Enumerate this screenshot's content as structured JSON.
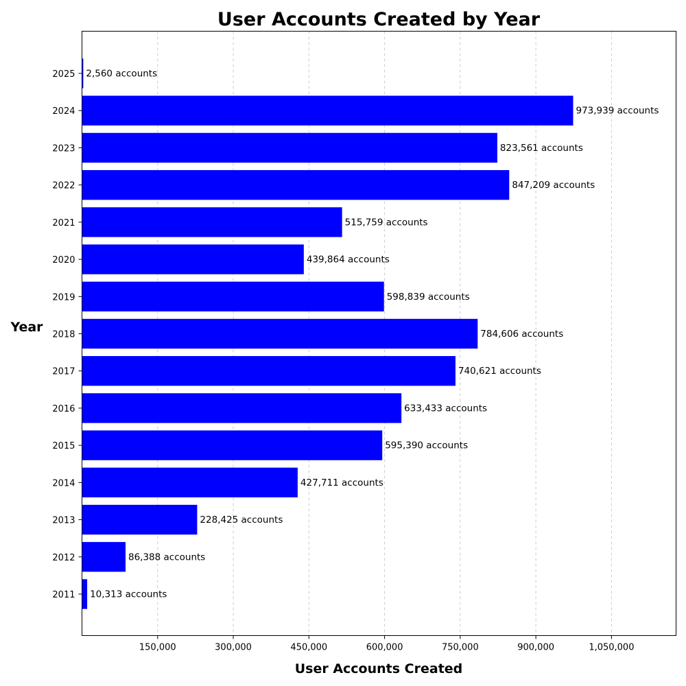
{
  "chart_data": {
    "type": "bar",
    "orientation": "horizontal",
    "title": "User Accounts Created by Year",
    "xlabel": "User Accounts Created",
    "ylabel": "Year",
    "categories": [
      "2011",
      "2012",
      "2013",
      "2014",
      "2015",
      "2016",
      "2017",
      "2018",
      "2019",
      "2020",
      "2021",
      "2022",
      "2023",
      "2024",
      "2025"
    ],
    "values": [
      10313,
      86388,
      228425,
      427711,
      595390,
      633433,
      740621,
      784606,
      598839,
      439864,
      515759,
      847209,
      823561,
      973939,
      2560
    ],
    "data_labels": [
      "10,313 accounts",
      "86,388 accounts",
      "228,425 accounts",
      "427,711 accounts",
      "595,390 accounts",
      "633,433 accounts",
      "740,621 accounts",
      "784,606 accounts",
      "598,839 accounts",
      "439,864 accounts",
      "515,759 accounts",
      "847,209 accounts",
      "823,561 accounts",
      "973,939 accounts",
      "2,560 accounts"
    ],
    "xticks": [
      150000,
      300000,
      450000,
      600000,
      750000,
      900000,
      1050000
    ],
    "xtick_labels": [
      "150,000",
      "300,000",
      "450,000",
      "600,000",
      "750,000",
      "900,000",
      "1,050,000"
    ],
    "xlim": [
      0,
      1178000
    ],
    "grid": {
      "x": true,
      "y": false,
      "style": "dashed"
    },
    "bar_color": "#0000ff",
    "legend": "none"
  }
}
